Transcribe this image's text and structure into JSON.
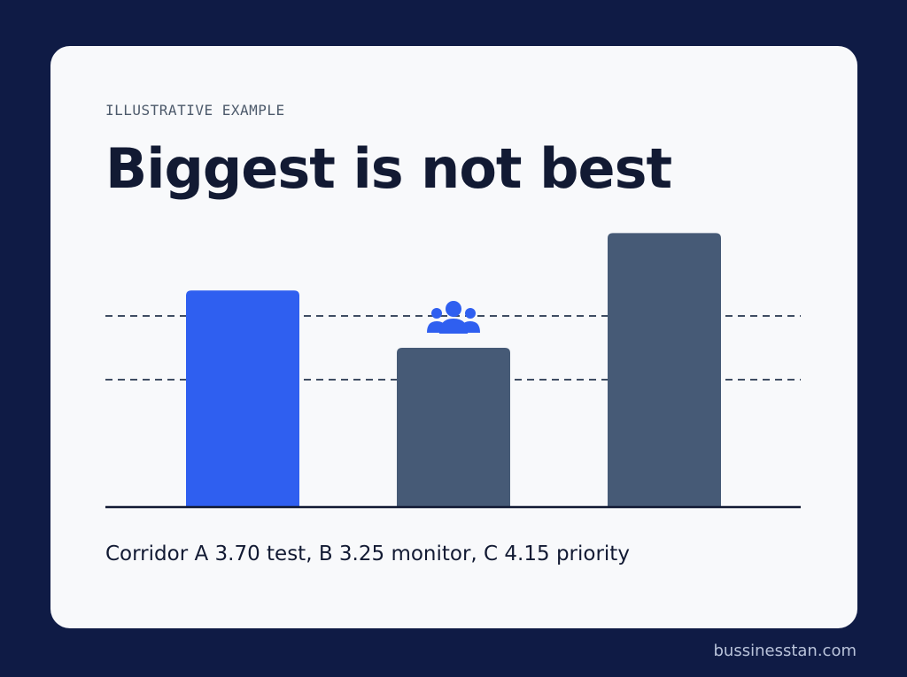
{
  "eyebrow": "ILLUSTRATIVE EXAMPLE",
  "title": "Biggest is not best",
  "caption": "Corridor A 3.70 test, B 3.25 monitor, C 4.15 priority",
  "footer": "bussinesstan.com",
  "colors": {
    "background": "#0f1b45",
    "card": "#f8f9fb",
    "highlight_bar": "#2f5ff0",
    "default_bar": "#465a76",
    "icon": "#2f5ff0",
    "axis": "#121a33",
    "gridline": "#3f4d63"
  },
  "chart_data": {
    "type": "bar",
    "categories": [
      "A",
      "B",
      "C"
    ],
    "values": [
      3.7,
      3.25,
      4.15
    ],
    "highlight": "A",
    "marker": {
      "category": "B",
      "icon": "users-group-icon"
    },
    "gridlines": "dashed",
    "title": "",
    "xlabel": "",
    "ylabel": ""
  }
}
